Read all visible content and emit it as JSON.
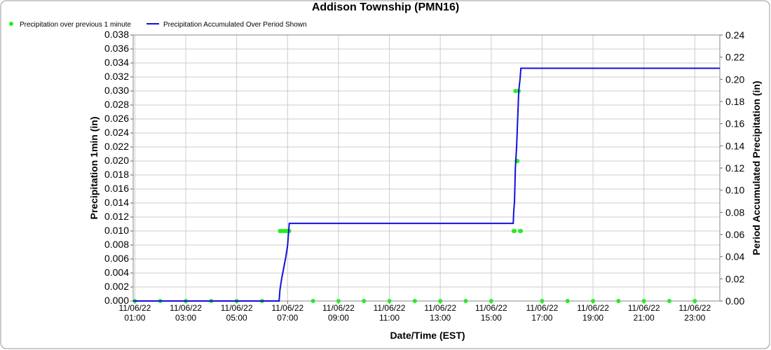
{
  "chart_data": {
    "type": "scatter-line",
    "title": "Addison Township (PMN16)",
    "x_label": "Date/Time (EST)",
    "y_label": "Precipitation 1min (in)",
    "y2_label": "Period Accumulated Precipitation (in)",
    "grid": true,
    "legend": "top-left",
    "xlim": [
      "11/06/22 00:56",
      "11/06/22 23:59"
    ],
    "xticks": [
      "11/06/22 01:00",
      "11/06/22 03:00",
      "11/06/22 05:00",
      "11/06/22 07:00",
      "11/06/22 09:00",
      "11/06/22 11:00",
      "11/06/22 13:00",
      "11/06/22 15:00",
      "11/06/22 17:00",
      "11/06/22 19:00",
      "11/06/22 21:00",
      "11/06/22 23:00"
    ],
    "ylim": [
      0,
      0.038
    ],
    "yticks": [
      {
        "value": 0,
        "label": "0.000"
      },
      {
        "value": 0.002,
        "label": "0.002"
      },
      {
        "value": 0.004,
        "label": "0.004"
      },
      {
        "value": 0.006,
        "label": "0.006"
      },
      {
        "value": 0.008,
        "label": "0.008"
      },
      {
        "value": 0.01,
        "label": "0.010"
      },
      {
        "value": 0.012,
        "label": "0.012"
      },
      {
        "value": 0.014,
        "label": "0.014"
      },
      {
        "value": 0.016,
        "label": "0.016"
      },
      {
        "value": 0.018,
        "label": "0.018"
      },
      {
        "value": 0.02,
        "label": "0.020"
      },
      {
        "value": 0.022,
        "label": "0.022"
      },
      {
        "value": 0.024,
        "label": "0.024"
      },
      {
        "value": 0.026,
        "label": "0.026"
      },
      {
        "value": 0.028,
        "label": "0.028"
      },
      {
        "value": 0.03,
        "label": "0.030"
      },
      {
        "value": 0.032,
        "label": "0.032"
      },
      {
        "value": 0.034,
        "label": "0.034"
      },
      {
        "value": 0.036,
        "label": "0.036"
      },
      {
        "value": 0.038,
        "label": "0.038"
      }
    ],
    "y2lim": [
      0,
      0.24
    ],
    "y2ticks": [
      {
        "value": 0,
        "label": "0.00"
      },
      {
        "value": 0.02,
        "label": "0.02"
      },
      {
        "value": 0.04,
        "label": "0.04"
      },
      {
        "value": 0.06,
        "label": "0.06"
      },
      {
        "value": 0.08,
        "label": "0.08"
      },
      {
        "value": 0.1,
        "label": "0.10"
      },
      {
        "value": 0.12,
        "label": "0.12"
      },
      {
        "value": 0.14,
        "label": "0.14"
      },
      {
        "value": 0.16,
        "label": "0.16"
      },
      {
        "value": 0.18,
        "label": "0.18"
      },
      {
        "value": 0.2,
        "label": "0.20"
      },
      {
        "value": 0.22,
        "label": "0.22"
      },
      {
        "value": 0.24,
        "label": "0.24"
      }
    ],
    "series": [
      {
        "name": "Precipitation over previous 1 minute",
        "color": "#22ee22",
        "style": "points",
        "x": [
          "11/06/22 01:00",
          "11/06/22 02:00",
          "11/06/22 03:00",
          "11/06/22 04:00",
          "11/06/22 05:00",
          "11/06/22 06:00",
          "11/06/22 06:42",
          "11/06/22 06:46",
          "11/06/22 06:51",
          "11/06/22 06:56",
          "11/06/22 07:00",
          "11/06/22 07:02",
          "11/06/22 07:04",
          "11/06/22 08:00",
          "11/06/22 09:00",
          "11/06/22 10:00",
          "11/06/22 11:00",
          "11/06/22 12:00",
          "11/06/22 13:00",
          "11/06/22 14:00",
          "11/06/22 15:00",
          "11/06/22 15:53",
          "11/06/22 15:55",
          "11/06/22 15:57",
          "11/06/22 16:00",
          "11/06/22 16:02",
          "11/06/22 16:05",
          "11/06/22 16:08",
          "11/06/22 16:10",
          "11/06/22 17:00",
          "11/06/22 18:00",
          "11/06/22 19:00",
          "11/06/22 20:00",
          "11/06/22 21:00",
          "11/06/22 22:00",
          "11/06/22 23:00"
        ],
        "values": [
          0,
          0,
          0,
          0,
          0,
          0,
          0.01,
          0.01,
          0.01,
          0.01,
          0.01,
          0.01,
          0.01,
          0,
          0,
          0,
          0,
          0,
          0,
          0,
          0,
          0.01,
          0.01,
          0.03,
          0.02,
          0.02,
          0.03,
          0.01,
          0.01,
          0,
          0,
          0,
          0,
          0,
          0,
          0
        ]
      },
      {
        "name": "Precipitation Accumulated Over Period Shown",
        "color": "#1010dd",
        "style": "line",
        "axis": "y2",
        "x": [
          "11/06/22 00:56",
          "11/06/22 06:40",
          "11/06/22 06:42",
          "11/06/22 06:46",
          "11/06/22 06:51",
          "11/06/22 06:56",
          "11/06/22 07:00",
          "11/06/22 07:02",
          "11/06/22 07:04",
          "11/06/22 15:52",
          "11/06/22 15:53",
          "11/06/22 15:55",
          "11/06/22 15:57",
          "11/06/22 16:00",
          "11/06/22 16:02",
          "11/06/22 16:05",
          "11/06/22 16:08",
          "11/06/22 16:10",
          "11/06/22 23:59"
        ],
        "values": [
          0,
          0,
          0.01,
          0.02,
          0.03,
          0.04,
          0.05,
          0.06,
          0.07,
          0.07,
          0.08,
          0.09,
          0.12,
          0.14,
          0.16,
          0.19,
          0.2,
          0.21,
          0.21
        ]
      }
    ]
  }
}
